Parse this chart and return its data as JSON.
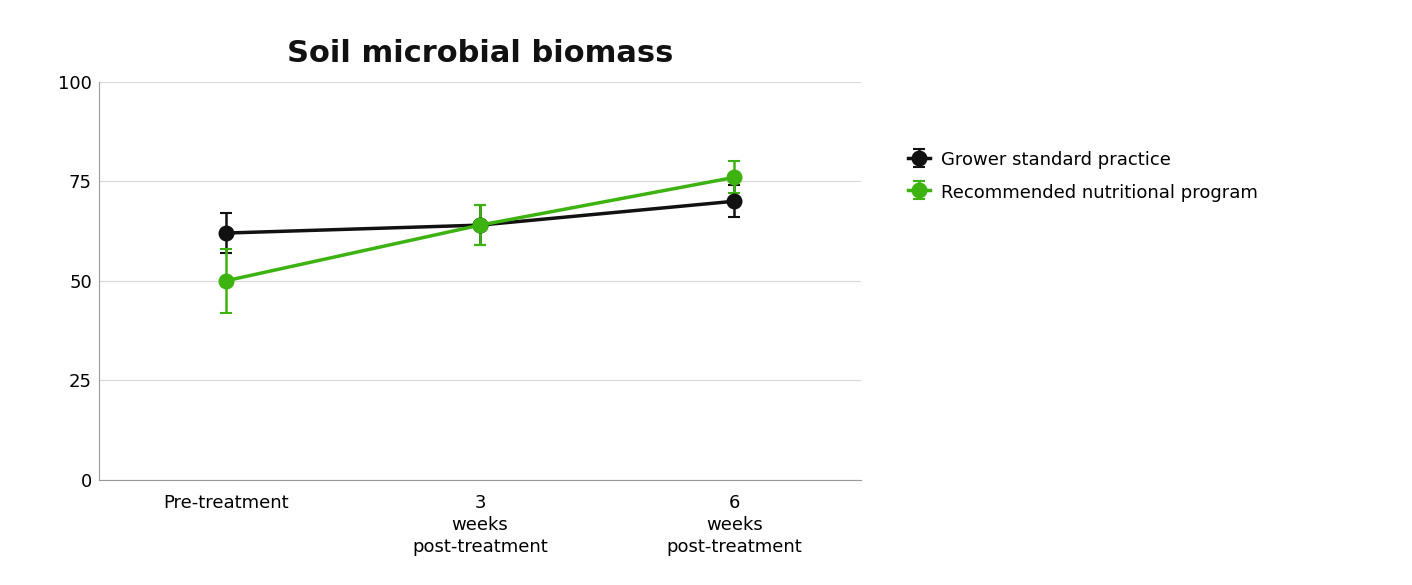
{
  "title": "Soil microbial biomass",
  "title_fontsize": 22,
  "title_fontweight": "bold",
  "x_positions": [
    0,
    1,
    2
  ],
  "x_tick_labels": [
    "Pre-treatment",
    "3\nweeks\npost-treatment",
    "6\nweeks\npost-treatment"
  ],
  "ylim": [
    0,
    100
  ],
  "yticks": [
    0,
    25,
    50,
    75,
    100
  ],
  "series": [
    {
      "label": "Grower standard practice",
      "color": "#111111",
      "values": [
        62,
        64,
        70
      ],
      "yerr": [
        5,
        5,
        4
      ]
    },
    {
      "label": "Recommended nutritional program",
      "color": "#3db312",
      "values": [
        50,
        64,
        76
      ],
      "yerr": [
        8,
        5,
        4
      ]
    }
  ],
  "marker": "o",
  "markersize": 10,
  "linewidth": 2.5,
  "capsize": 4,
  "elinewidth": 1.8,
  "grid_color": "#d8d8d8",
  "grid_linewidth": 0.8,
  "background_color": "#ffffff",
  "legend_fontsize": 13,
  "tick_fontsize": 13,
  "spine_color": "#999999"
}
